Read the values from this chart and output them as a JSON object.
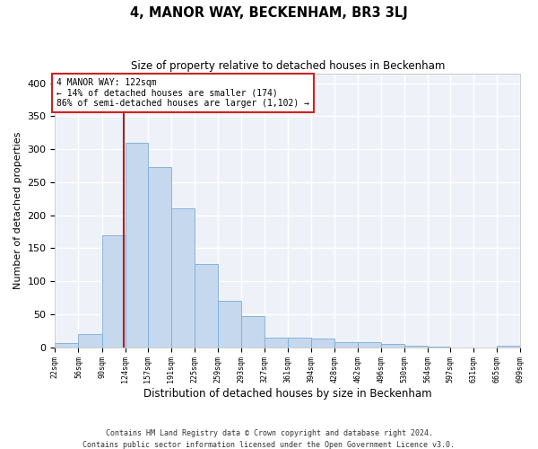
{
  "title": "4, MANOR WAY, BECKENHAM, BR3 3LJ",
  "subtitle": "Size of property relative to detached houses in Beckenham",
  "xlabel": "Distribution of detached houses by size in Beckenham",
  "ylabel": "Number of detached properties",
  "bar_color": "#c5d8ee",
  "bar_edge_color": "#7aadd4",
  "background_color": "#eef2f8",
  "grid_color": "#ffffff",
  "annotation_line_color": "#aa2222",
  "annotation_box_edge_color": "#cc2222",
  "property_sqm": 122,
  "annotation_text_line1": "4 MANOR WAY: 122sqm",
  "annotation_text_line2": "← 14% of detached houses are smaller (174)",
  "annotation_text_line3": "86% of semi-detached houses are larger (1,102) →",
  "bin_edges": [
    22,
    56,
    90,
    124,
    157,
    191,
    225,
    259,
    293,
    327,
    361,
    394,
    428,
    462,
    496,
    530,
    564,
    597,
    631,
    665,
    699
  ],
  "bar_heights": [
    7,
    20,
    170,
    310,
    273,
    211,
    126,
    71,
    47,
    15,
    15,
    13,
    8,
    8,
    5,
    2,
    1,
    0,
    0,
    2
  ],
  "ylim": [
    0,
    415
  ],
  "yticks": [
    0,
    50,
    100,
    150,
    200,
    250,
    300,
    350,
    400
  ],
  "footer_line1": "Contains HM Land Registry data © Crown copyright and database right 2024.",
  "footer_line2": "Contains public sector information licensed under the Open Government Licence v3.0."
}
